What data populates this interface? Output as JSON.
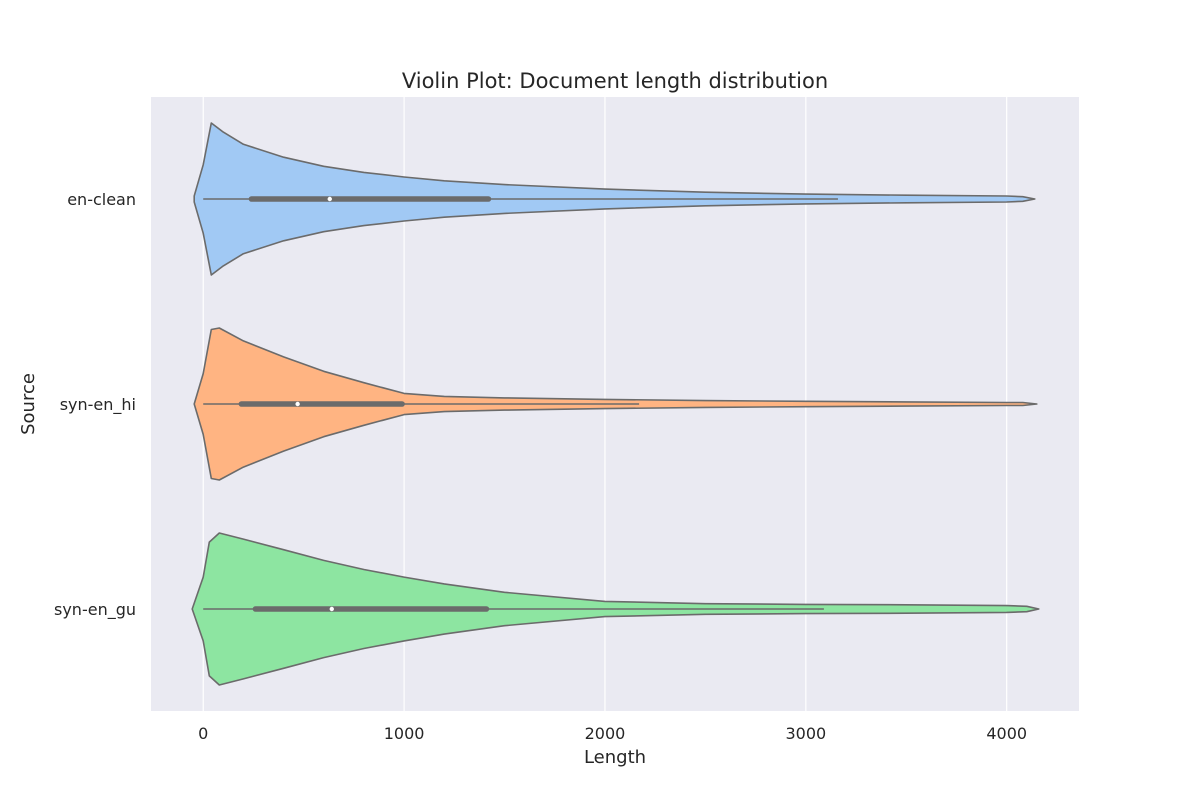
{
  "chart_data": {
    "type": "violin",
    "title": "Violin Plot: Document length distribution",
    "xlabel": "Length",
    "ylabel": "Source",
    "xlim": [
      -260,
      4360
    ],
    "x_ticks": [
      0,
      1000,
      2000,
      3000,
      4000
    ],
    "grid": true,
    "orientation": "horizontal",
    "colors": {
      "background": "#eaeaf2",
      "grid": "#ffffff",
      "outline": "#6b6b6b"
    },
    "series": [
      {
        "name": "en-clean",
        "color": "#a1c9f4",
        "box": {
          "min": 0,
          "q1": 240,
          "median": 630,
          "q3": 1420,
          "whisker_high": 3160
        },
        "density": [
          [
            -45,
            0.04
          ],
          [
            0,
            0.45
          ],
          [
            40,
            1.0
          ],
          [
            100,
            0.88
          ],
          [
            200,
            0.72
          ],
          [
            400,
            0.55
          ],
          [
            600,
            0.43
          ],
          [
            800,
            0.35
          ],
          [
            1000,
            0.29
          ],
          [
            1200,
            0.24
          ],
          [
            1500,
            0.19
          ],
          [
            2000,
            0.13
          ],
          [
            2500,
            0.09
          ],
          [
            3000,
            0.065
          ],
          [
            3500,
            0.05
          ],
          [
            4000,
            0.04
          ],
          [
            4080,
            0.03
          ],
          [
            4140,
            0.0
          ]
        ]
      },
      {
        "name": "syn-en_hi",
        "color": "#ffb482",
        "box": {
          "min": 0,
          "q1": 190,
          "median": 470,
          "q3": 990,
          "whisker_high": 2170
        },
        "density": [
          [
            -45,
            0.0
          ],
          [
            0,
            0.4
          ],
          [
            40,
            0.98
          ],
          [
            80,
            1.0
          ],
          [
            200,
            0.83
          ],
          [
            400,
            0.62
          ],
          [
            600,
            0.43
          ],
          [
            800,
            0.28
          ],
          [
            1000,
            0.14
          ],
          [
            1200,
            0.1
          ],
          [
            1500,
            0.08
          ],
          [
            2000,
            0.06
          ],
          [
            2500,
            0.045
          ],
          [
            3000,
            0.035
          ],
          [
            3500,
            0.028
          ],
          [
            4000,
            0.02
          ],
          [
            4080,
            0.02
          ],
          [
            4150,
            0.0
          ]
        ]
      },
      {
        "name": "syn-en_gu",
        "color": "#8de5a1",
        "box": {
          "min": 0,
          "q1": 260,
          "median": 640,
          "q3": 1410,
          "whisker_high": 3090
        },
        "density": [
          [
            -55,
            0.0
          ],
          [
            0,
            0.42
          ],
          [
            30,
            0.88
          ],
          [
            80,
            1.0
          ],
          [
            200,
            0.92
          ],
          [
            400,
            0.78
          ],
          [
            600,
            0.64
          ],
          [
            800,
            0.52
          ],
          [
            1000,
            0.42
          ],
          [
            1200,
            0.33
          ],
          [
            1500,
            0.22
          ],
          [
            2000,
            0.1
          ],
          [
            2500,
            0.07
          ],
          [
            3000,
            0.06
          ],
          [
            3500,
            0.055
          ],
          [
            4000,
            0.045
          ],
          [
            4100,
            0.035
          ],
          [
            4160,
            0.0
          ]
        ]
      }
    ]
  }
}
